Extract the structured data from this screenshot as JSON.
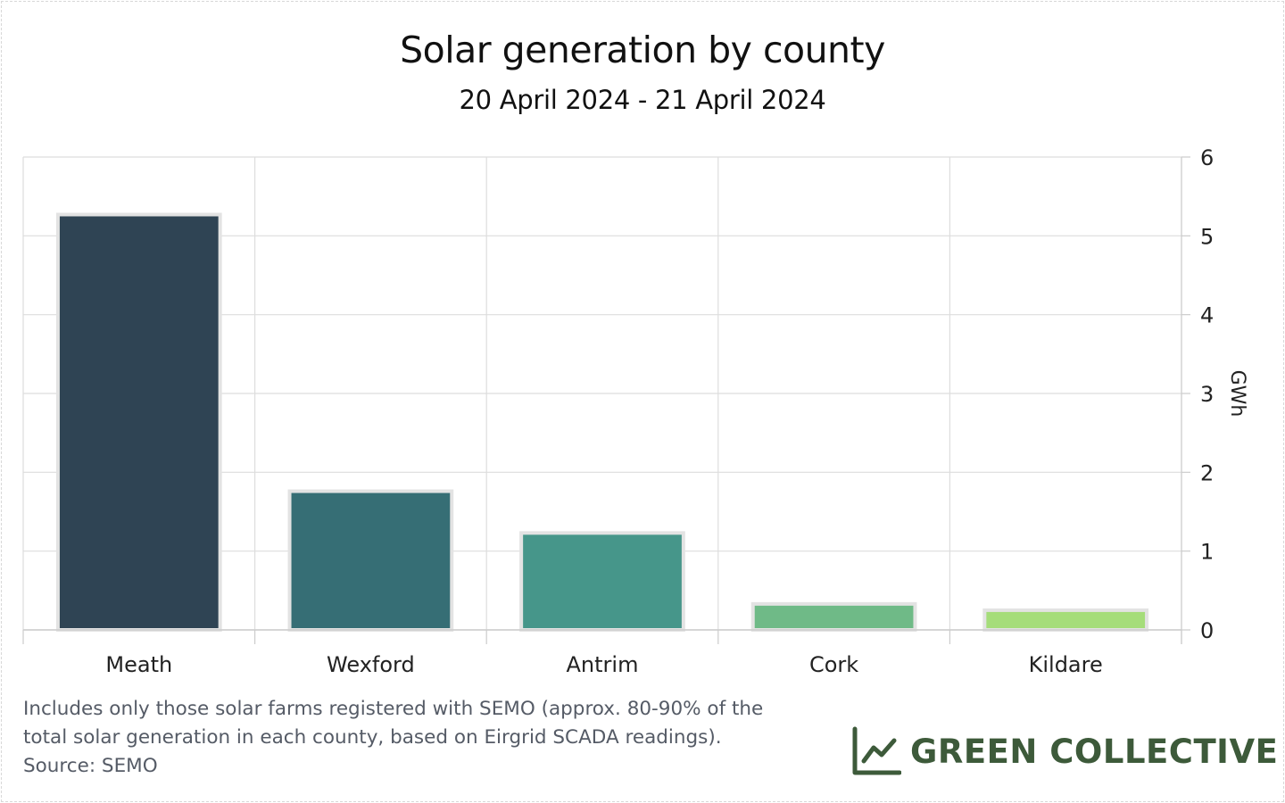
{
  "chart_data": {
    "type": "bar",
    "title": "Solar generation by county",
    "subtitle": "20 April 2024 - 21 April 2024",
    "categories": [
      "Meath",
      "Wexford",
      "Antrim",
      "Cork",
      "Kildare"
    ],
    "values": [
      5.27,
      1.76,
      1.23,
      0.33,
      0.25
    ],
    "bar_colors": [
      "#2f4454",
      "#366e75",
      "#46968a",
      "#6fba87",
      "#a5dd7a"
    ],
    "ylabel": "GWh",
    "xlabel": "",
    "ylim": [
      0,
      6
    ],
    "yticks": [
      0,
      1,
      2,
      3,
      4,
      5,
      6
    ],
    "y_axis_position": "right",
    "grid": true,
    "legend": "none"
  },
  "footnote": {
    "line1": "Includes only those solar farms registered with SEMO (approx. 80-90% of the",
    "line2": "total solar generation in each county, based on Eirgrid SCADA readings).",
    "line3": "Source: SEMO"
  },
  "brand": {
    "name": "GREEN COLLECTIVE",
    "icon": "line-chart-icon",
    "color": "#3d5a3a"
  }
}
